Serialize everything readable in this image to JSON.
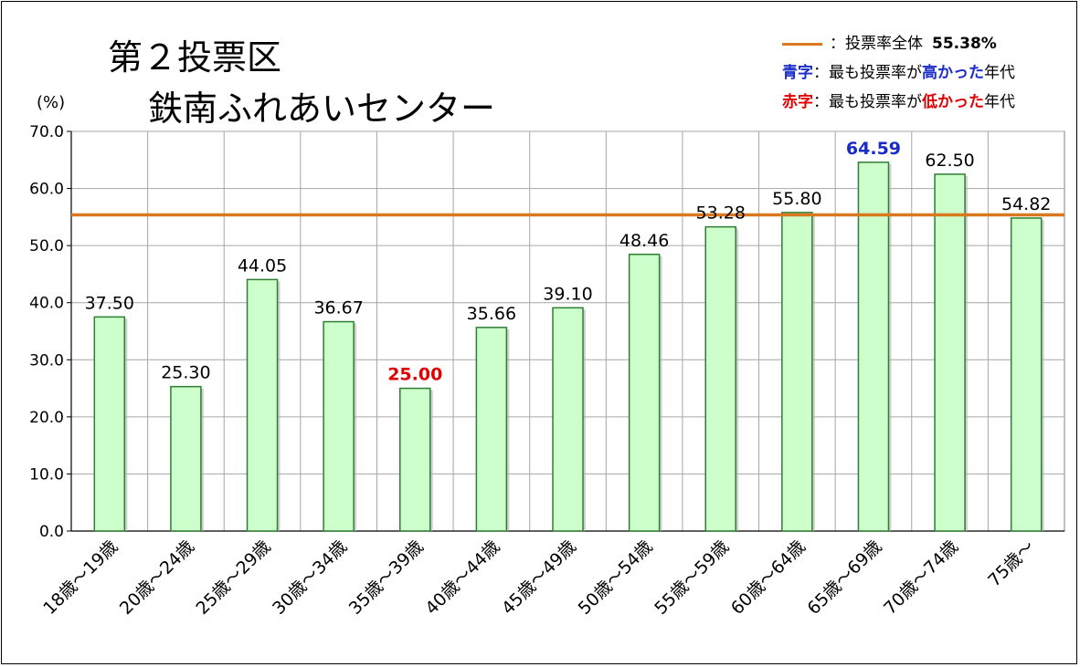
{
  "chart_data": {
    "type": "bar",
    "title": "第２投票区",
    "subtitle": "鉄南ふれあいセンター",
    "ylabel": "(%)",
    "xlabel": "",
    "ylim": [
      0,
      70
    ],
    "yticks": [
      "0.0",
      "10.0",
      "20.0",
      "30.0",
      "40.0",
      "50.0",
      "60.0",
      "70.0"
    ],
    "categories": [
      "18歳～19歳",
      "20歳～24歳",
      "25歳～29歳",
      "30歳～34歳",
      "35歳～39歳",
      "40歳～44歳",
      "45歳～49歳",
      "50歳～54歳",
      "55歳～59歳",
      "60歳～64歳",
      "65歳～69歳",
      "70歳～74歳",
      "75歳～"
    ],
    "values": [
      37.5,
      25.3,
      44.05,
      36.67,
      25.0,
      35.66,
      39.1,
      48.46,
      53.28,
      55.8,
      64.59,
      62.5,
      54.82
    ],
    "value_labels": [
      "37.50",
      "25.30",
      "44.05",
      "36.67",
      "25.00",
      "35.66",
      "39.10",
      "48.46",
      "53.28",
      "55.80",
      "64.59",
      "62.50",
      "54.82"
    ],
    "highest_index": 10,
    "lowest_index": 4,
    "reference_line": {
      "value": 55.38
    },
    "grid": true,
    "legend_position": "top-right",
    "colors": {
      "bar_fill": "#ccffcc",
      "bar_stroke": "#2e7d32",
      "reference_line": "#d9781e",
      "highest": "#1a2cc8",
      "lowest": "#e00000",
      "grid": "#a6a6a6"
    }
  },
  "legend": {
    "overall_label": "：投票率全体",
    "overall_value": "55.38%",
    "blue_key": "青字",
    "blue_text_1": "：最も投票率が",
    "blue_text_2": "高かった",
    "blue_text_3": "年代",
    "red_key": "赤字",
    "red_text_1": "：最も投票率が",
    "red_text_2": "低かった",
    "red_text_3": "年代"
  }
}
